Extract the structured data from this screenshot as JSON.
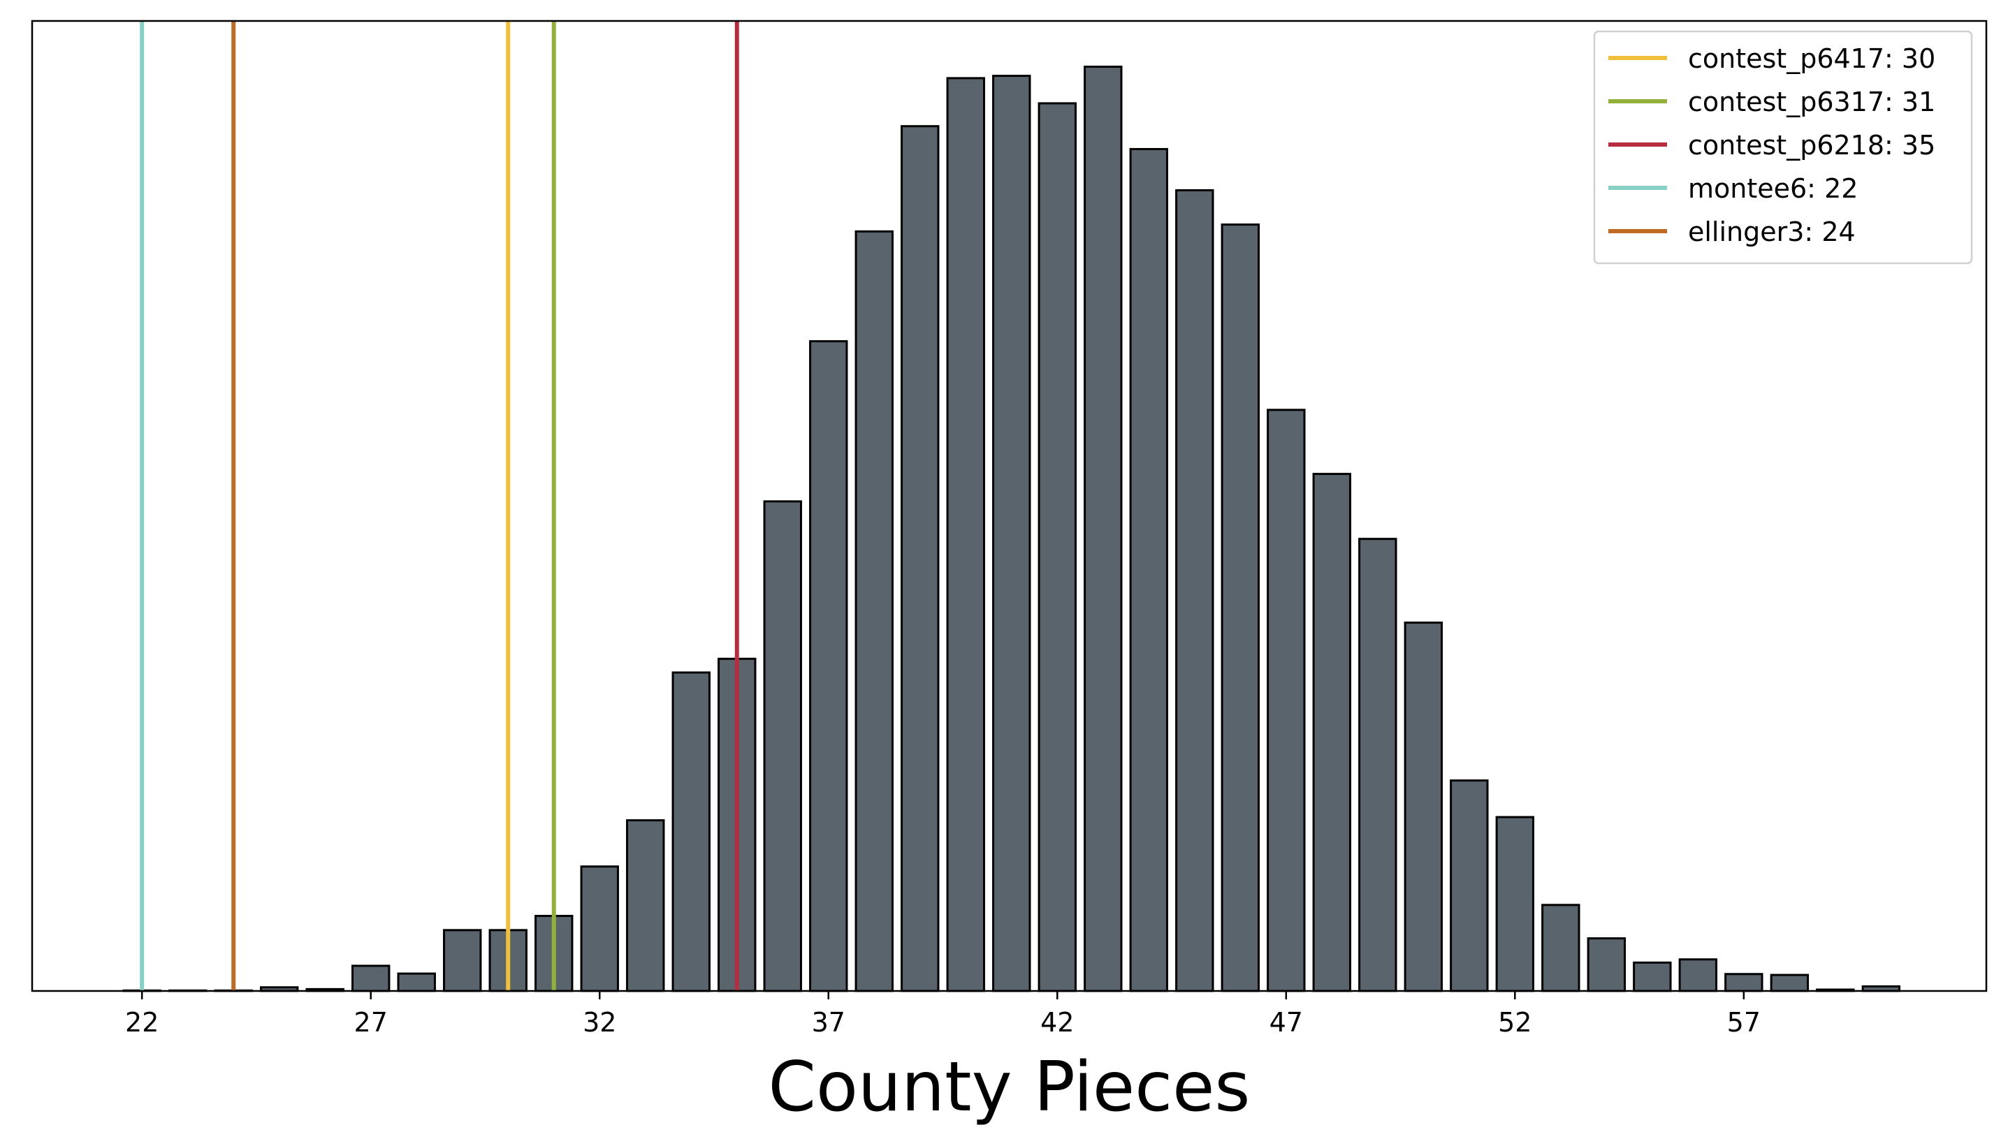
{
  "chart_data": {
    "type": "bar",
    "title": "",
    "xlabel": "County Pieces",
    "ylabel": "",
    "xlim": [
      19.6,
      62.3
    ],
    "ylim": [
      0,
      21.2
    ],
    "x_ticks": [
      22,
      27,
      32,
      37,
      42,
      47,
      52,
      57
    ],
    "y_ticks_shown": false,
    "grid": false,
    "legend_position": "top-right",
    "bar_color": "#5a646d",
    "bar_edge_color": "#000000",
    "x": [
      22,
      23,
      24,
      25,
      26,
      27,
      28,
      29,
      30,
      31,
      32,
      33,
      34,
      35,
      36,
      37,
      38,
      39,
      40,
      41,
      42,
      43,
      44,
      45,
      46,
      47,
      48,
      49,
      50,
      51,
      52,
      53,
      54,
      55,
      56,
      57,
      58,
      59,
      60,
      61
    ],
    "values": [
      0.01,
      0.01,
      0.01,
      0.08,
      0.04,
      0.55,
      0.38,
      1.33,
      1.33,
      1.64,
      2.72,
      3.73,
      6.96,
      7.26,
      10.7,
      14.2,
      16.6,
      18.9,
      19.95,
      20.0,
      19.4,
      20.2,
      18.4,
      17.5,
      16.75,
      12.7,
      11.3,
      9.88,
      8.05,
      4.6,
      3.8,
      1.88,
      1.15,
      0.62,
      0.69,
      0.37,
      0.35,
      0.03,
      0.1,
      0.0
    ],
    "reference_lines": [
      {
        "label": "contest_p6417: 30",
        "x": 30,
        "color": "#f0c03c"
      },
      {
        "label": "contest_p6317: 31",
        "x": 31,
        "color": "#92b13a"
      },
      {
        "label": "contest_p6218: 35",
        "x": 35,
        "color": "#b82c40"
      },
      {
        "label": "montee6: 22",
        "x": 22,
        "color": "#86d1c3"
      },
      {
        "label": "ellinger3: 24",
        "x": 24,
        "color": "#c06a24"
      }
    ]
  }
}
